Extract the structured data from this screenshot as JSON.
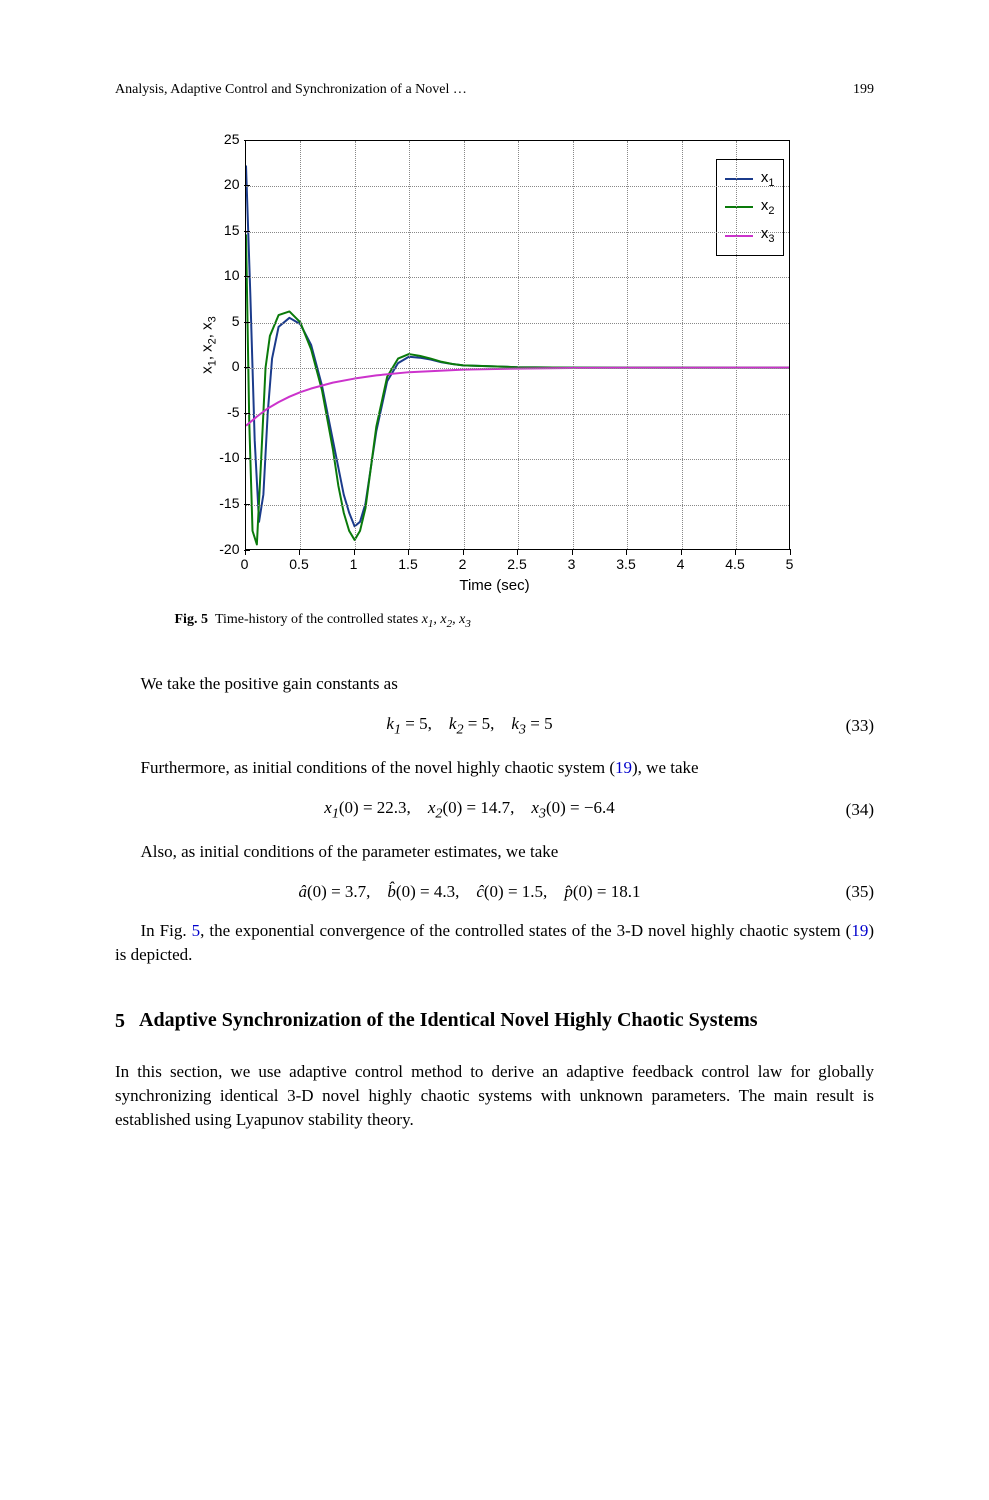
{
  "header": {
    "running_head": "Analysis, Adaptive Control and Synchronization of a Novel …",
    "page_number": "199"
  },
  "figure5": {
    "type": "line",
    "xlabel": "Time (sec)",
    "ylabel_html": "x<tspan class='sub'>1</tspan>, x<tspan class='sub'>2</tspan>, x<tspan class='sub'>3</tspan>",
    "ylabel_parts": [
      "x",
      "1",
      ", x",
      "2",
      ", x",
      "3"
    ],
    "label_fontsize": 15,
    "xlim": [
      0,
      5
    ],
    "ylim": [
      -20,
      25
    ],
    "xtick_step": 0.5,
    "ytick_step": 5,
    "xtick_labels": [
      "0",
      "0.5",
      "1",
      "1.5",
      "2",
      "2.5",
      "3",
      "3.5",
      "4",
      "4.5",
      "5"
    ],
    "ytick_labels": [
      "-20",
      "-15",
      "-10",
      "-5",
      "0",
      "5",
      "10",
      "15",
      "20",
      "25"
    ],
    "grid_color": "#888888",
    "grid_style": "dotted",
    "background_color": "#ffffff",
    "legend_position": "top-right",
    "line_width": 2,
    "series": [
      {
        "name": "x1",
        "label_var": "x",
        "label_sub": "1",
        "color": "#1b3b8b",
        "time": [
          0,
          0.04,
          0.08,
          0.12,
          0.16,
          0.2,
          0.24,
          0.3,
          0.4,
          0.5,
          0.6,
          0.7,
          0.8,
          0.85,
          0.9,
          0.95,
          1.0,
          1.05,
          1.1,
          1.15,
          1.2,
          1.3,
          1.4,
          1.5,
          1.6,
          1.7,
          1.8,
          1.9,
          2.0,
          2.5,
          3.0,
          3.5,
          4.0,
          4.5,
          5.0
        ],
        "values": [
          22.3,
          8,
          -8,
          -17,
          -14,
          -5,
          1,
          4.5,
          5.5,
          4.8,
          2.5,
          -2,
          -8,
          -11,
          -14,
          -16,
          -17.5,
          -17,
          -15,
          -11,
          -7,
          -1.5,
          0.5,
          1.2,
          1.1,
          0.9,
          0.6,
          0.4,
          0.25,
          0.05,
          0.0,
          0.0,
          0.0,
          0.0,
          0.0
        ]
      },
      {
        "name": "x2",
        "label_var": "x",
        "label_sub": "2",
        "color": "#0a7a0a",
        "time": [
          0,
          0.03,
          0.06,
          0.1,
          0.14,
          0.18,
          0.22,
          0.3,
          0.4,
          0.5,
          0.6,
          0.7,
          0.8,
          0.85,
          0.9,
          0.95,
          1.0,
          1.05,
          1.1,
          1.15,
          1.2,
          1.3,
          1.4,
          1.5,
          1.6,
          1.7,
          1.8,
          1.9,
          2.0,
          2.5,
          3.0,
          3.5,
          4.0,
          4.5,
          5.0
        ],
        "values": [
          14.7,
          -6,
          -18,
          -19.5,
          -10,
          0,
          3.5,
          5.8,
          6.2,
          5,
          2,
          -2.5,
          -9,
          -13,
          -16,
          -18,
          -19,
          -18,
          -15.5,
          -11,
          -6.5,
          -1,
          1,
          1.5,
          1.3,
          1.0,
          0.65,
          0.4,
          0.25,
          0.05,
          0.0,
          0.0,
          0.0,
          0.0,
          0.0
        ]
      },
      {
        "name": "x3",
        "label_var": "x",
        "label_sub": "3",
        "color": "#cc33cc",
        "time": [
          0,
          0.1,
          0.2,
          0.3,
          0.4,
          0.5,
          0.6,
          0.8,
          1.0,
          1.2,
          1.5,
          2.0,
          2.5,
          3.0,
          3.5,
          4.0,
          4.5,
          5.0
        ],
        "values": [
          -6.4,
          -5.4,
          -4.5,
          -3.8,
          -3.2,
          -2.7,
          -2.3,
          -1.65,
          -1.2,
          -0.85,
          -0.5,
          -0.22,
          -0.1,
          -0.04,
          -0.015,
          -0.005,
          0.0,
          0.0
        ]
      }
    ],
    "caption_label": "Fig. 5",
    "caption_text": "Time-history of the controlled states ",
    "caption_vars": "x₁, x₂, x₃"
  },
  "body": {
    "para1": "We take the positive gain constants as",
    "eq33_html": "k<sub>1</sub> <span class='rm'>= 5,</span> k<sub>2</sub> <span class='rm'>= 5,</span> k<sub>3</sub> <span class='rm'>= 5</span>",
    "eq33_num": "(33)",
    "para2_a": "Furthermore, as initial conditions of the novel highly chaotic system (",
    "link19": "19",
    "para2_b": "), we take",
    "eq34_html": "x<sub>1</sub><span class='rm'>(0) = 22.3,</span> x<sub>2</sub><span class='rm'>(0) = 14.7,</span> x<sub>3</sub><span class='rm'>(0) = −6.4</span>",
    "eq34_num": "(34)",
    "para3": "Also, as initial conditions of the parameter estimates, we take",
    "eq35_html": "â<span class='rm'>(0) = 3.7,</span> b̂<span class='rm'>(0) = 4.3,</span> ĉ<span class='rm'>(0) = 1.5,</span> p̂<span class='rm'>(0) = 18.1</span>",
    "eq35_num": "(35)",
    "para4_a": "In Fig. ",
    "link5": "5",
    "para4_b": ", the exponential convergence of the controlled states of the 3-D novel highly chaotic system (",
    "para4_c": ") is depicted."
  },
  "section5": {
    "number": "5",
    "title": "Adaptive Synchronization of the Identical Novel Highly Chaotic Systems",
    "para": "In this section, we use adaptive control method to derive an adaptive feedback control law for globally synchronizing identical 3-D novel highly chaotic systems with unknown parameters. The main result is established using Lyapunov stability theory."
  }
}
